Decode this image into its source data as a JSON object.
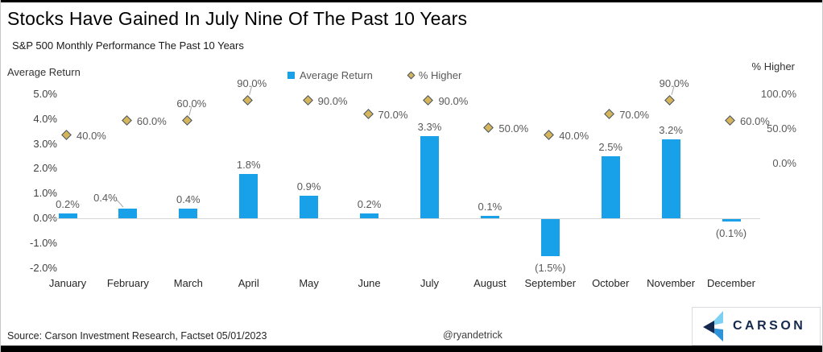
{
  "header": {
    "title": "Stocks Have Gained In July Nine Of The Past 10 Years",
    "subtitle": "S&P 500 Monthly Performance The Past 10 Years"
  },
  "footer": {
    "source": "Source: Carson Investment Research, Factset 05/01/2023",
    "handle": "@ryandetrick",
    "logo_text": "CARSON"
  },
  "colors": {
    "bar": "#18A0E8",
    "diamond_fill": "#D6B45A",
    "diamond_stroke": "#44546A",
    "label_gray": "#595959",
    "axis_line": "#d6d6d6",
    "logo_navy": "#14294D",
    "logo_light_blue": "#7CD0F2",
    "logo_mid_blue": "#2E93D8"
  },
  "chart_data": {
    "type": "bar",
    "title": "S&P 500 Monthly Performance The Past 10 Years",
    "categories": [
      "January",
      "February",
      "March",
      "April",
      "May",
      "June",
      "July",
      "August",
      "September",
      "October",
      "November",
      "December"
    ],
    "series": [
      {
        "name": "Average Return",
        "type": "bar",
        "axis": "left",
        "values": [
          0.2,
          0.4,
          0.4,
          1.8,
          0.9,
          0.2,
          3.3,
          0.1,
          -1.5,
          2.5,
          3.2,
          -0.1
        ],
        "labels": [
          "0.2%",
          "0.4%",
          "0.4%",
          "1.8%",
          "0.9%",
          "0.2%",
          "3.3%",
          "0.1%",
          "(1.5%)",
          "2.5%",
          "3.2%",
          "(0.1%)"
        ],
        "label_pos": [
          "above",
          "left",
          "above",
          "above",
          "above",
          "above",
          "above",
          "above",
          "below",
          "above",
          "above",
          "below"
        ]
      },
      {
        "name": "% Higher",
        "type": "scatter",
        "marker": "diamond",
        "axis": "right",
        "values": [
          40,
          60,
          60,
          90,
          90,
          70,
          90,
          50,
          40,
          70,
          90,
          60
        ],
        "labels": [
          "40.0%",
          "60.0%",
          "60.0%",
          "90.0%",
          "90.0%",
          "70.0%",
          "90.0%",
          "50.0%",
          "40.0%",
          "70.0%",
          "90.0%",
          "60.0%"
        ],
        "label_pos": [
          "right",
          "right",
          "above",
          "above",
          "right",
          "right",
          "right",
          "right",
          "right",
          "right",
          "above",
          "right"
        ]
      }
    ],
    "left_axis": {
      "title": "Average Return",
      "min": -2,
      "max": 5,
      "ticks": [
        "5.0%",
        "4.0%",
        "3.0%",
        "2.0%",
        "1.0%",
        "0.0%",
        "-1.0%",
        "-2.0%"
      ],
      "tick_values": [
        5,
        4,
        3,
        2,
        1,
        0,
        -1,
        -2
      ]
    },
    "right_axis": {
      "title": "% Higher",
      "min": 0,
      "max": 100,
      "ticks": [
        "100.0%",
        "50.0%",
        "0.0%"
      ],
      "tick_values": [
        100,
        50,
        0
      ]
    },
    "legend_position": "top-center",
    "grid": false
  }
}
